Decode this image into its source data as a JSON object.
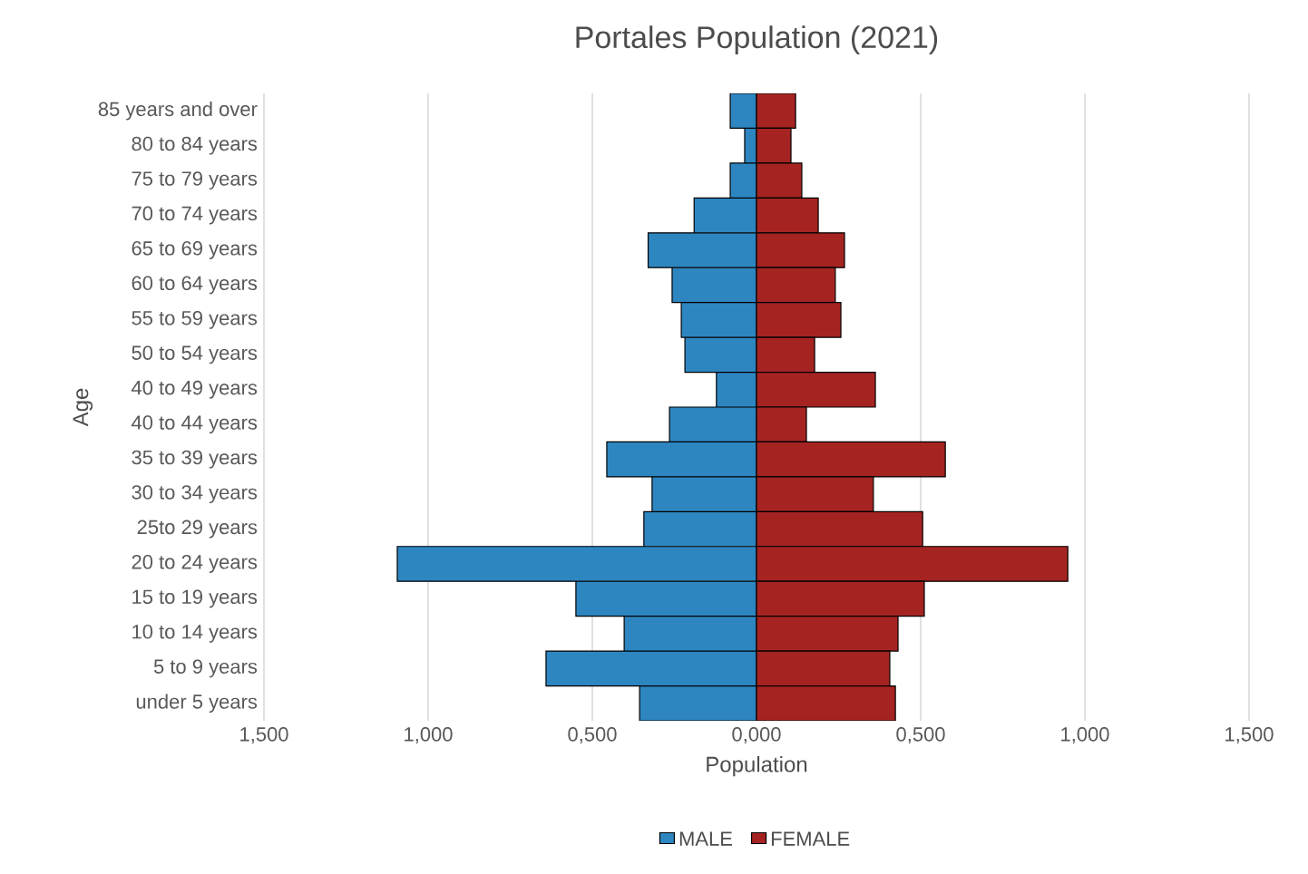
{
  "chart_data": {
    "type": "bar",
    "orientation": "horizontal",
    "title": "Portales Population (2021)",
    "xlabel": "Population",
    "ylabel": "Age",
    "categories": [
      "85 years and over",
      "80 to 84 years",
      "75 to 79 years",
      "70 to 74 years",
      "65 to 69 years",
      "60 to 64 years",
      "55 to 59 years",
      "50 to 54 years",
      "40 to 49 years",
      "40 to 44 years",
      "35 to 39 years",
      "30 to 34 years",
      "25to 29 years",
      "20 to 24 years",
      "15 to 19 years",
      "10 to 14 years",
      "5 to 9 years",
      "under 5 years"
    ],
    "series": [
      {
        "name": "MALE",
        "color": "#2e86c1",
        "values": [
          -0.08,
          -0.036,
          -0.08,
          -0.19,
          -0.33,
          -0.257,
          -0.229,
          -0.218,
          -0.122,
          -0.265,
          -0.456,
          -0.318,
          -0.343,
          -1.094,
          -0.55,
          -0.403,
          -0.641,
          -0.356
        ]
      },
      {
        "name": "FEMALE",
        "color": "#a52422",
        "values": [
          0.119,
          0.105,
          0.138,
          0.188,
          0.268,
          0.24,
          0.257,
          0.177,
          0.362,
          0.152,
          0.575,
          0.356,
          0.506,
          0.948,
          0.511,
          0.431,
          0.406,
          0.423
        ]
      }
    ],
    "xlim": [
      -1.5,
      1.5
    ],
    "xticks": [
      {
        "value": -1.5,
        "label": "1,500"
      },
      {
        "value": -1.0,
        "label": "1,000"
      },
      {
        "value": -0.5,
        "label": "0,500"
      },
      {
        "value": 0,
        "label": "0,000"
      },
      {
        "value": 0.5,
        "label": "0,500"
      },
      {
        "value": 1.0,
        "label": "1,000"
      },
      {
        "value": 1.5,
        "label": "1,500"
      }
    ],
    "grid": "x",
    "legend": "bottom",
    "stacked": true
  }
}
